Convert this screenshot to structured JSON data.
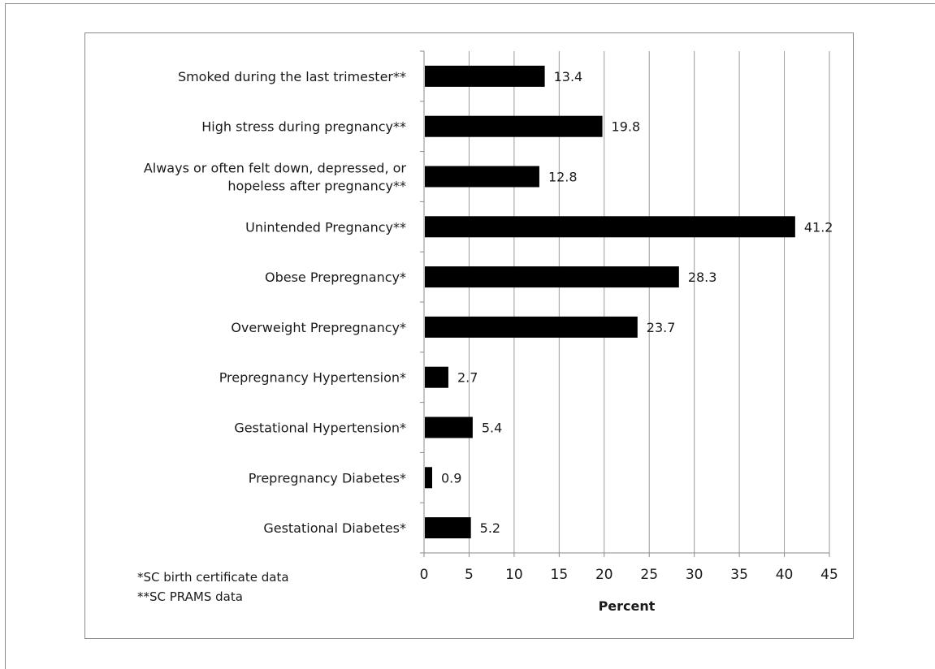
{
  "footnotes": [
    "*SC birth certificate data",
    "**SC PRAMS data"
  ],
  "chart_data": {
    "type": "bar",
    "orientation": "horizontal",
    "categories": [
      "Smoked during the last trimester**",
      "High stress during pregnancy**",
      "Always or often felt down, depressed, or hopeless after pregnancy**",
      "Unintended Pregnancy**",
      "Obese Prepregnancy*",
      "Overweight Prepregnancy*",
      "Prepregnancy Hypertension*",
      "Gestational Hypertension*",
      "Prepregnancy Diabetes*",
      "Gestational Diabetes*"
    ],
    "category_label_lines": [
      [
        "Smoked during the last trimester**"
      ],
      [
        "High stress during pregnancy**"
      ],
      [
        "Always or often felt down, depressed, or",
        "hopeless after pregnancy**"
      ],
      [
        "Unintended Pregnancy**"
      ],
      [
        "Obese Prepregnancy*"
      ],
      [
        "Overweight Prepregnancy*"
      ],
      [
        "Prepregnancy Hypertension*"
      ],
      [
        "Gestational Hypertension*"
      ],
      [
        "Prepregnancy Diabetes*"
      ],
      [
        "Gestational Diabetes*"
      ]
    ],
    "values": [
      13.4,
      19.8,
      12.8,
      41.2,
      28.3,
      23.7,
      2.7,
      5.4,
      0.9,
      5.2
    ],
    "data_labels": [
      "13.4",
      "19.8",
      "12.8",
      "41.2",
      "28.3",
      "23.7",
      "2.7",
      "5.4",
      "0.9",
      "5.2"
    ],
    "xlabel": "Percent",
    "xlim": [
      0,
      45
    ],
    "xticks": [
      0,
      5,
      10,
      15,
      20,
      25,
      30,
      35,
      40,
      45
    ],
    "grid": "vertical",
    "legend": "none",
    "colors": {
      "bar": "#000000",
      "grid": "#9a9a9a",
      "axis": "#8a8a8a",
      "frame": "#8a8a8a"
    }
  }
}
